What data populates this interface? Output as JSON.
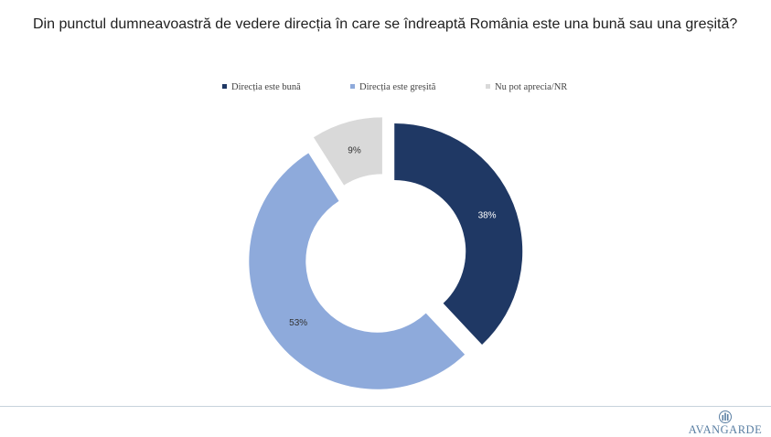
{
  "title": "Din punctul dumneavoastră de vedere direcția în care se îndreaptă România este una bună sau una greșită?",
  "chart_data": {
    "type": "pie",
    "style": "donut-exploded",
    "title": "Din punctul dumneavoastră de vedere direcția în care se îndreaptă România este una bună sau una greșită?",
    "legend_position": "top",
    "series": [
      {
        "name": "Direcția este bună",
        "value": 38,
        "label": "38%",
        "color": "#1f3864",
        "label_color": "#ffffff"
      },
      {
        "name": "Direcția este greșită",
        "value": 53,
        "label": "53%",
        "color": "#8eaadb",
        "label_color": "#333333"
      },
      {
        "name": "Nu pot aprecia/NR",
        "value": 9,
        "label": "9%",
        "color": "#d9d9d9",
        "label_color": "#333333"
      }
    ]
  },
  "logo": {
    "text": "AVANGARDE",
    "color": "#5a7fa3"
  }
}
